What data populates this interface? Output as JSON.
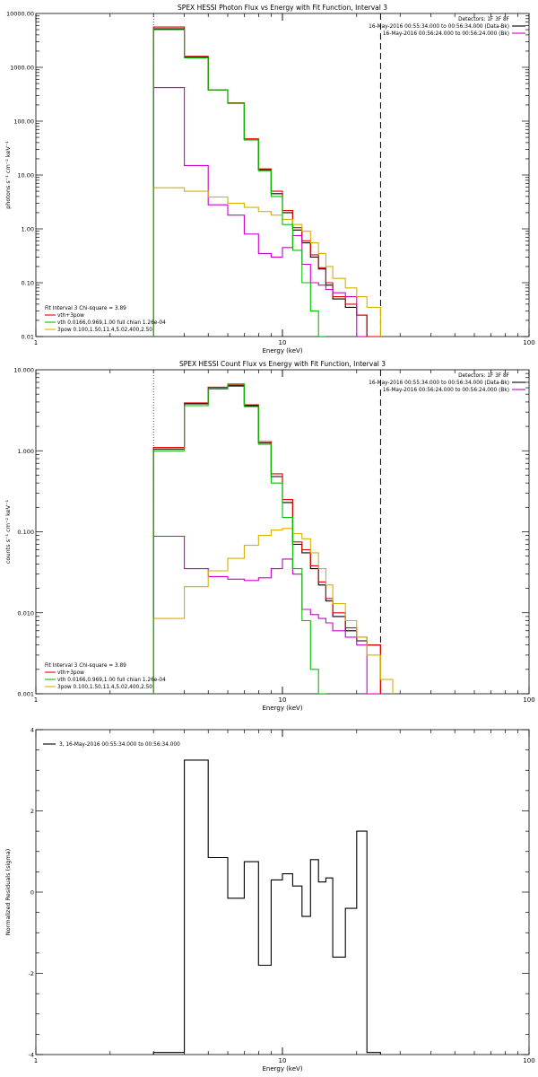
{
  "chart_data": [
    {
      "type": "line",
      "title": "SPEX HESSI Photon Flux vs Energy with Fit Function, Interval 3",
      "xlabel": "Energy (keV)",
      "ylabel": "photons s⁻¹ cm⁻² keV⁻¹",
      "xscale": "log",
      "yscale": "log",
      "xlim": [
        1,
        100
      ],
      "ylim": [
        0.01,
        10000
      ],
      "x_ticks": [
        "1",
        "10",
        "100"
      ],
      "y_ticks": [
        "0.01",
        "0.10",
        "1.00",
        "10.00",
        "100.00",
        "1000.00",
        "10000.00"
      ],
      "y_tick_values": [
        0.01,
        0.1,
        1,
        10,
        100,
        1000,
        10000
      ],
      "bin_edges": [
        3,
        4,
        5,
        6,
        7,
        8,
        9,
        10,
        11,
        12,
        13,
        14,
        15,
        16,
        18,
        20,
        22,
        25
      ],
      "series": [
        {
          "name": "Data",
          "color": "#000000",
          "values": [
            5200,
            1550,
            380,
            215,
            45,
            12.5,
            4.5,
            2.0,
            0.95,
            0.55,
            0.3,
            0.18,
            0.09,
            0.05,
            0.035,
            0.025,
            0.01
          ]
        },
        {
          "name": "vth+3pow",
          "color": "#e00000",
          "values": [
            5600,
            1600,
            380,
            220,
            47,
            13,
            5.0,
            2.2,
            1.05,
            0.6,
            0.33,
            0.19,
            0.1,
            0.055,
            0.04,
            0.025,
            0.01
          ]
        },
        {
          "name": "vth 0.0166,0.969,1.00 full chian 1.26e-04",
          "color": "#00c000",
          "values": [
            5000,
            1500,
            380,
            215,
            45,
            12,
            4.0,
            1.2,
            0.4,
            0.1,
            0.03,
            0.01
          ]
        },
        {
          "name": "3pow 0.100,1.50,11.4,5.02,400,2.50",
          "color": "#d4b000",
          "values": [
            5.8,
            5.0,
            3.9,
            3.0,
            2.5,
            2.1,
            1.8,
            1.5,
            1.2,
            0.9,
            0.55,
            0.35,
            0.2,
            0.12,
            0.08,
            0.055,
            0.035,
            0.01
          ]
        },
        {
          "name": "Background",
          "color": "#cc00cc",
          "values": [
            420,
            15,
            2.8,
            1.8,
            0.8,
            0.35,
            0.3,
            0.45,
            0.75,
            0.22,
            0.1,
            0.09,
            0.075,
            0.065,
            0.055,
            0.01
          ]
        }
      ],
      "vline_dotted": 3,
      "vline_dashed": 25,
      "legend_top_right": [
        {
          "text": "Detectors: 1F 3F 8F",
          "color": null
        },
        {
          "text": "16-May-2016 00:55:34.000 to 00:56:34.000 (Data-Bk)",
          "color": "#000000"
        },
        {
          "text": "16-May-2016 00:56:24.000 to 00:56:24.000 (Bk)",
          "color": "#cc00cc"
        }
      ],
      "legend_bottom_left": [
        {
          "text": "Fit Interval 3   Chi-square = 3.89",
          "color": null
        },
        {
          "text": "vth+3pow",
          "color": "#e00000"
        },
        {
          "text": "vth 0.0166,0.969,1.00  full chian 1.26e-04",
          "color": "#00c000"
        },
        {
          "text": "3pow 0.100,1.50,11.4,5.02,400,2.50",
          "color": "#d4b000"
        }
      ]
    },
    {
      "type": "line",
      "title": "SPEX HESSI Count Flux vs Energy with Fit Function, Interval 3",
      "xlabel": "Energy (keV)",
      "ylabel": "counts s⁻¹ cm⁻² keV⁻¹",
      "xscale": "log",
      "yscale": "log",
      "xlim": [
        1,
        100
      ],
      "ylim": [
        0.001,
        10
      ],
      "x_ticks": [
        "1",
        "10",
        "100"
      ],
      "y_ticks": [
        "0.001",
        "0.010",
        "0.100",
        "1.000",
        "10.000"
      ],
      "y_tick_values": [
        0.001,
        0.01,
        0.1,
        1,
        10
      ],
      "bin_edges": [
        3,
        4,
        5,
        6,
        7,
        8,
        9,
        10,
        11,
        12,
        13,
        14,
        15,
        16,
        18,
        20,
        22,
        25,
        28
      ],
      "series": [
        {
          "name": "Data",
          "color": "#000000",
          "values": [
            1.05,
            3.8,
            6.0,
            6.3,
            3.6,
            1.25,
            0.48,
            0.23,
            0.07,
            0.055,
            0.035,
            0.022,
            0.014,
            0.009,
            0.006,
            0.0045,
            0.004
          ]
        },
        {
          "name": "vth+3pow",
          "color": "#e00000",
          "values": [
            1.1,
            3.9,
            6.1,
            6.5,
            3.7,
            1.3,
            0.52,
            0.25,
            0.075,
            0.06,
            0.038,
            0.024,
            0.015,
            0.01,
            0.0065,
            0.005,
            0.004
          ]
        },
        {
          "name": "vth 0.0166,0.969,1.00 full chian 1.26e-04",
          "color": "#00c000",
          "values": [
            1.0,
            3.6,
            5.8,
            6.7,
            3.5,
            1.2,
            0.4,
            0.15,
            0.035,
            0.008,
            0.002,
            0.001
          ]
        },
        {
          "name": "3pow 0.100,1.50,11.4,5.02,400,2.50",
          "color": "#d4b000",
          "values": [
            0.0085,
            0.021,
            0.033,
            0.047,
            0.068,
            0.09,
            0.105,
            0.11,
            0.095,
            0.082,
            0.055,
            0.035,
            0.022,
            0.013,
            0.008,
            0.005,
            0.003,
            0.0015
          ]
        },
        {
          "name": "Background",
          "color": "#cc00cc",
          "values": [
            0.088,
            0.035,
            0.028,
            0.026,
            0.025,
            0.027,
            0.035,
            0.046,
            0.03,
            0.011,
            0.0095,
            0.0085,
            0.0075,
            0.006,
            0.005,
            0.004,
            0.001
          ]
        }
      ],
      "vline_dotted": 3,
      "vline_dashed": 25,
      "legend_top_right": [
        {
          "text": "Detectors: 1F 3F 8F",
          "color": null
        },
        {
          "text": "16-May-2016 00:55:34.000 to 00:56:34.000 (Data-Bk)",
          "color": "#000000"
        },
        {
          "text": "16-May-2016 00:56:24.000 to 00:56:24.000 (Bk)",
          "color": "#cc00cc"
        }
      ],
      "legend_bottom_left": [
        {
          "text": "Fit Interval 3   Chi-square = 3.89",
          "color": null
        },
        {
          "text": "vth+3pow",
          "color": "#e00000"
        },
        {
          "text": "vth 0.0166,0.969,1.00  full chian 1.26e-04",
          "color": "#00c000"
        },
        {
          "text": "3pow 0.100,1.50,11.4,5.02,400,2.50",
          "color": "#d4b000"
        }
      ]
    },
    {
      "type": "line",
      "title": "",
      "xlabel": "Energy (keV)",
      "ylabel": "Normalized Residuals (sigma)",
      "xscale": "log",
      "yscale": "linear",
      "xlim": [
        1,
        100
      ],
      "ylim": [
        -4,
        4
      ],
      "x_ticks": [
        "1",
        "10",
        "100"
      ],
      "y_ticks": [
        "-4",
        "-2",
        "0",
        "2",
        "4"
      ],
      "y_tick_values": [
        -4,
        -2,
        0,
        2,
        4
      ],
      "bin_edges": [
        3,
        4,
        5,
        6,
        7,
        8,
        9,
        10,
        11,
        12,
        13,
        14,
        15,
        16,
        18,
        20,
        22,
        25
      ],
      "series": [
        {
          "name": "Residuals",
          "color": "#000000",
          "values": [
            -3.95,
            3.25,
            0.85,
            -0.15,
            0.75,
            -1.8,
            0.3,
            0.45,
            0.15,
            -0.6,
            0.8,
            0.25,
            0.35,
            -1.6,
            -0.4,
            1.5,
            -3.95
          ]
        }
      ],
      "legend_top_left": [
        {
          "text": "3, 16-May-2016 00:55:34.000 to 00:56:34.000",
          "color": "#000000"
        }
      ]
    }
  ]
}
